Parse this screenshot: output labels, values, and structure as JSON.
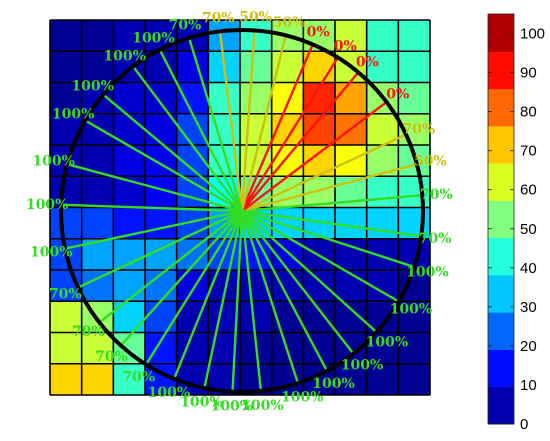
{
  "chart_data": {
    "type": "heatmap",
    "title": "",
    "xlabel": "",
    "ylabel": "",
    "grid": true,
    "colormap": "jet",
    "clim": [
      0,
      105
    ],
    "colorbar": {
      "ticks": [
        {
          "value": 0,
          "label": "0"
        },
        {
          "value": 10,
          "label": "10"
        },
        {
          "value": 20,
          "label": "20"
        },
        {
          "value": 30,
          "label": "30"
        },
        {
          "value": 40,
          "label": "40"
        },
        {
          "value": 50,
          "label": "50"
        },
        {
          "value": 60,
          "label": "60"
        },
        {
          "value": 70,
          "label": "70"
        },
        {
          "value": 80,
          "label": "80"
        },
        {
          "value": 90,
          "label": "90"
        },
        {
          "value": 100,
          "label": "100"
        }
      ]
    },
    "matrix": [
      [
        2,
        2,
        5,
        5,
        5,
        30,
        45,
        55,
        55,
        60,
        45,
        45
      ],
      [
        2,
        2,
        5,
        5,
        10,
        35,
        50,
        60,
        70,
        60,
        45,
        45
      ],
      [
        2,
        5,
        8,
        8,
        15,
        45,
        55,
        65,
        88,
        75,
        55,
        50
      ],
      [
        5,
        5,
        8,
        10,
        20,
        45,
        60,
        70,
        85,
        80,
        60,
        55
      ],
      [
        5,
        5,
        10,
        12,
        20,
        45,
        60,
        65,
        70,
        65,
        55,
        50
      ],
      [
        5,
        5,
        8,
        12,
        20,
        40,
        50,
        55,
        55,
        50,
        45,
        45
      ],
      [
        20,
        20,
        15,
        15,
        20,
        30,
        35,
        35,
        35,
        35,
        35,
        35
      ],
      [
        20,
        30,
        30,
        30,
        25,
        20,
        15,
        10,
        5,
        5,
        5,
        5
      ],
      [
        20,
        25,
        30,
        25,
        10,
        5,
        5,
        5,
        5,
        5,
        5,
        2
      ],
      [
        60,
        55,
        35,
        20,
        5,
        5,
        5,
        2,
        2,
        2,
        2,
        2
      ],
      [
        60,
        60,
        50,
        15,
        5,
        5,
        2,
        2,
        2,
        2,
        2,
        2
      ],
      [
        70,
        70,
        45,
        15,
        5,
        5,
        2,
        2,
        2,
        2,
        2,
        2
      ]
    ],
    "circle": {
      "color": "#000000"
    },
    "rays": [
      {
        "angle": 5,
        "label": "70%",
        "color": "#33dd22"
      },
      {
        "angle": 15,
        "label": "50%",
        "color": "#ccc010"
      },
      {
        "angle": 25,
        "label": "70%",
        "color": "#ccc010"
      },
      {
        "angle": 37,
        "label": "0%",
        "color": "#ff1111"
      },
      {
        "angle": 50,
        "label": "0%",
        "color": "#ff1111"
      },
      {
        "angle": 58,
        "label": "0%",
        "color": "#ff1111"
      },
      {
        "angle": 67,
        "label": "0%",
        "color": "#ff1111"
      },
      {
        "angle": 76,
        "label": "50%",
        "color": "#ccc010"
      },
      {
        "angle": 86,
        "label": "50%",
        "color": "#ccc010"
      },
      {
        "angle": 97,
        "label": "70%",
        "color": "#ccc010"
      },
      {
        "angle": 107,
        "label": "70%",
        "color": "#33dd22"
      },
      {
        "angle": 117,
        "label": "100%",
        "color": "#33dd22"
      },
      {
        "angle": 127,
        "label": "100%",
        "color": "#33dd22"
      },
      {
        "angle": 140,
        "label": "100%",
        "color": "#33dd22"
      },
      {
        "angle": 150,
        "label": "100%",
        "color": "#33dd22"
      },
      {
        "angle": 165,
        "label": "100%",
        "color": "#33dd22"
      },
      {
        "angle": 178,
        "label": "100%",
        "color": "#33dd22"
      },
      {
        "angle": 192,
        "label": "100%",
        "color": "#33dd22"
      },
      {
        "angle": 205,
        "label": "70%",
        "color": "#33dd22"
      },
      {
        "angle": 218,
        "label": "70%",
        "color": "#33dd22"
      },
      {
        "angle": 228,
        "label": "70%",
        "color": "#33dd22"
      },
      {
        "angle": 238,
        "label": "70%",
        "color": "#33dd22"
      },
      {
        "angle": 248,
        "label": "100%",
        "color": "#33dd22"
      },
      {
        "angle": 258,
        "label": "100%",
        "color": "#33dd22"
      },
      {
        "angle": 267,
        "label": "100%",
        "color": "#33dd22"
      },
      {
        "angle": 276,
        "label": "100%",
        "color": "#33dd22"
      },
      {
        "angle": 288,
        "label": "100%",
        "color": "#33dd22"
      },
      {
        "angle": 298,
        "label": "100%",
        "color": "#33dd22"
      },
      {
        "angle": 308,
        "label": "100%",
        "color": "#33dd22"
      },
      {
        "angle": 318,
        "label": "100%",
        "color": "#33dd22"
      },
      {
        "angle": 330,
        "label": "100%",
        "color": "#33dd22"
      },
      {
        "angle": 342,
        "label": "100%",
        "color": "#33dd22"
      },
      {
        "angle": 352,
        "label": "70%",
        "color": "#33dd22"
      }
    ]
  }
}
